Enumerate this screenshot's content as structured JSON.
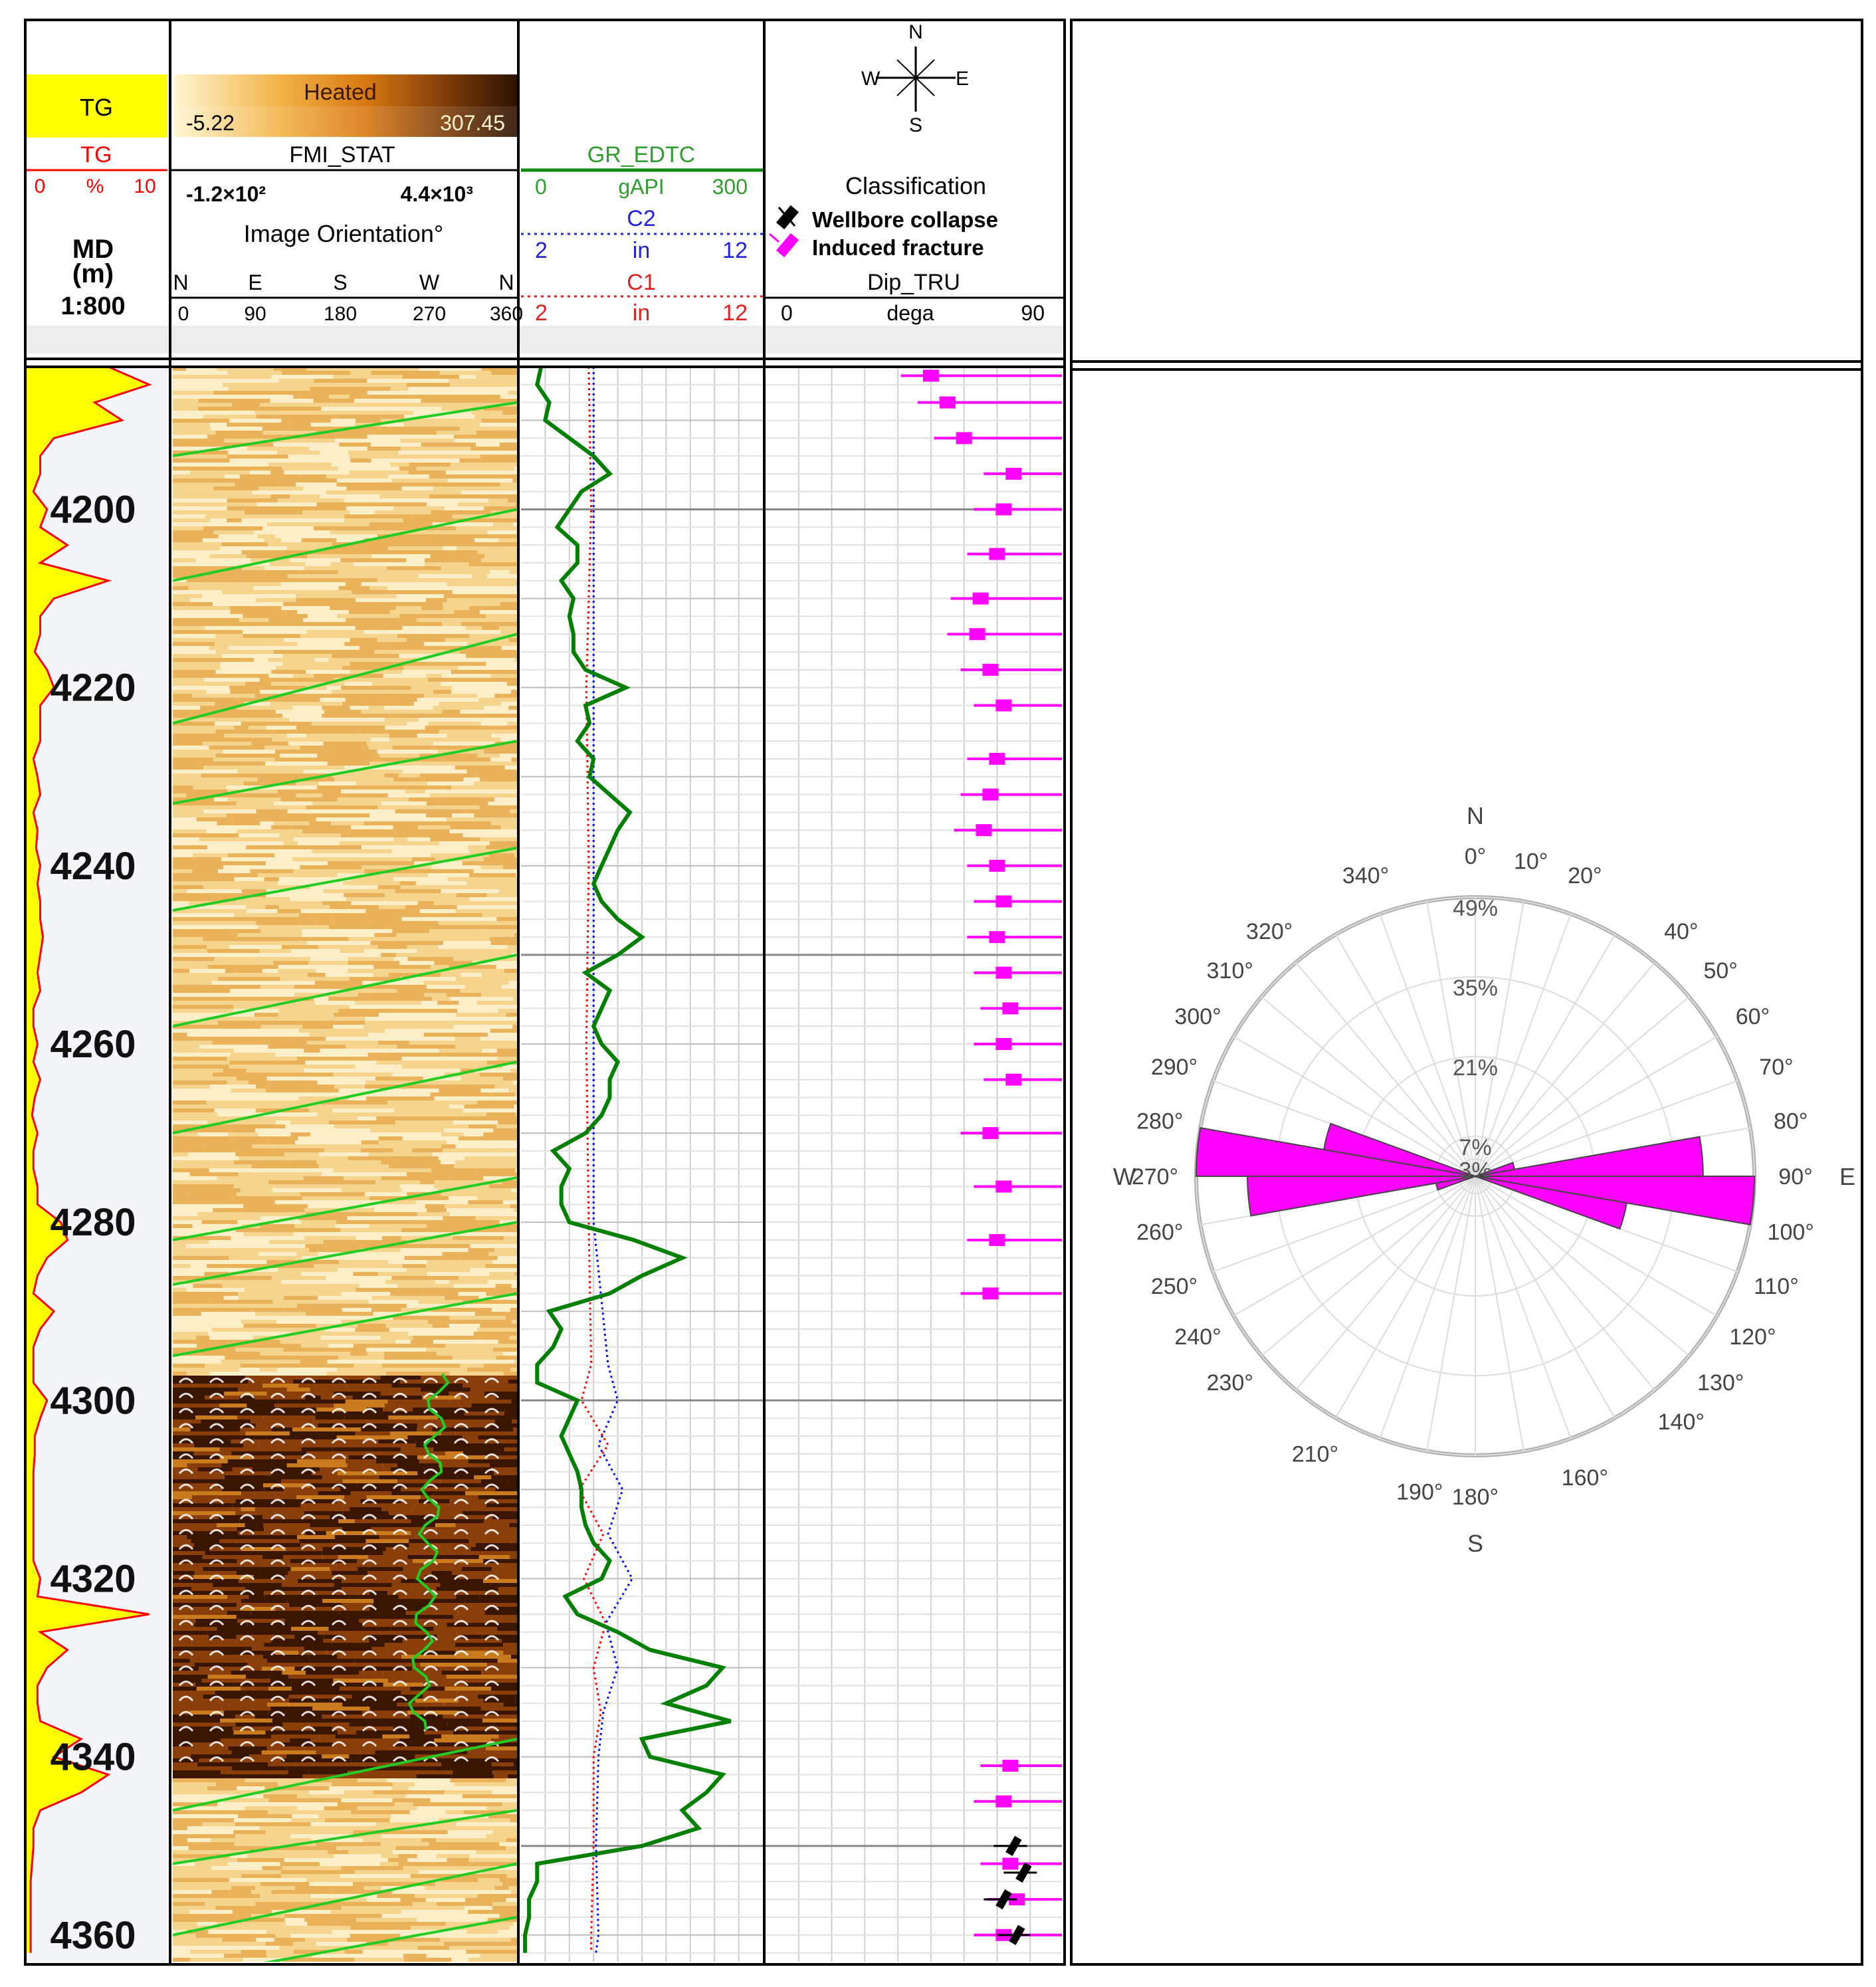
{
  "header": {
    "tg_label": "TG",
    "tg_curve_label": "TG",
    "tg_scale_min": "0",
    "tg_scale_unit": "%",
    "tg_scale_max": "10",
    "md_label": "MD",
    "md_unit": "(m)",
    "md_scale": "1:800",
    "heated_label": "Heated",
    "heated_min": "-5.22",
    "heated_max": "307.45",
    "fmi_label": "FMI_STAT",
    "fmi_min": "-1.2×10²",
    "fmi_max": "4.4×10³",
    "orientation_label": "Image Orientation°",
    "orientation_letters": [
      "N",
      "E",
      "S",
      "W",
      "N"
    ],
    "orientation_values": [
      "0",
      "90",
      "180",
      "270",
      "360"
    ],
    "gr_label": "GR_EDTC",
    "gr_min": "0",
    "gr_unit": "gAPI",
    "gr_max": "300",
    "c2_label": "C2",
    "c2_min": "2",
    "c2_unit": "in",
    "c2_max": "12",
    "c1_label": "C1",
    "c1_min": "2",
    "c1_unit": "in",
    "c1_max": "12",
    "compass": {
      "n": "N",
      "s": "S",
      "e": "E",
      "w": "W"
    },
    "classification_label": "Classification",
    "legend_collapse": "Wellbore collapse",
    "legend_fracture": "Induced fracture",
    "dip_label": "Dip_TRU",
    "dip_min": "0",
    "dip_unit": "dega",
    "dip_max": "90"
  },
  "depth_ticks": [
    "4200",
    "4220",
    "4240",
    "4260",
    "4280",
    "4300",
    "4320",
    "4340",
    "4360"
  ],
  "colors": {
    "tg_fill": "#ffff00",
    "tg_line": "#ff0000",
    "gr_line": "#008000",
    "c1_line": "#ff0000",
    "c2_line": "#0000ff",
    "fracture": "#ff00ff",
    "collapse": "#000000",
    "sinusoid": "#22cc22",
    "image_light": "#fbe7b2",
    "image_dark": "#5a2a05"
  },
  "rose": {
    "n": "N",
    "s": "S",
    "e": "E",
    "w": "W",
    "angle_labels": [
      {
        "text": "0°",
        "deg": 0
      },
      {
        "text": "10°",
        "deg": 10
      },
      {
        "text": "20°",
        "deg": 20
      },
      {
        "text": "40°",
        "deg": 40
      },
      {
        "text": "50°",
        "deg": 50
      },
      {
        "text": "60°",
        "deg": 60
      },
      {
        "text": "70°",
        "deg": 70
      },
      {
        "text": "80°",
        "deg": 80
      },
      {
        "text": "90°",
        "deg": 90
      },
      {
        "text": "100°",
        "deg": 100
      },
      {
        "text": "110°",
        "deg": 110
      },
      {
        "text": "120°",
        "deg": 120
      },
      {
        "text": "130°",
        "deg": 130
      },
      {
        "text": "140°",
        "deg": 140
      },
      {
        "text": "160°",
        "deg": 160
      },
      {
        "text": "180°",
        "deg": 180
      },
      {
        "text": "190°",
        "deg": 190
      },
      {
        "text": "210°",
        "deg": 210
      },
      {
        "text": "230°",
        "deg": 230
      },
      {
        "text": "240°",
        "deg": 240
      },
      {
        "text": "250°",
        "deg": 250
      },
      {
        "text": "260°",
        "deg": 260
      },
      {
        "text": "270°",
        "deg": 270
      },
      {
        "text": "280°",
        "deg": 280
      },
      {
        "text": "290°",
        "deg": 290
      },
      {
        "text": "300°",
        "deg": 300
      },
      {
        "text": "310°",
        "deg": 310
      },
      {
        "text": "320°",
        "deg": 320
      },
      {
        "text": "340°",
        "deg": 340
      }
    ],
    "radial_labels": [
      {
        "text": "49%",
        "value": 49
      },
      {
        "text": "35%",
        "value": 35
      },
      {
        "text": "21%",
        "value": 21
      },
      {
        "text": "7%",
        "value": 7
      },
      {
        "text": "3%",
        "value": 3
      }
    ]
  },
  "chart_data": {
    "type": "well_log",
    "depth_range_m": [
      4184,
      4363
    ],
    "depth_unit": "m",
    "tracks": {
      "tg": {
        "range": [
          0,
          10
        ],
        "unit": "%",
        "depth": [
          4184,
          4186,
          4188,
          4190,
          4192,
          4194,
          4196,
          4198,
          4200,
          4202,
          4204,
          4206,
          4208,
          4210,
          4212,
          4214,
          4216,
          4218,
          4220,
          4222,
          4224,
          4226,
          4228,
          4230,
          4232,
          4234,
          4236,
          4238,
          4240,
          4242,
          4244,
          4246,
          4248,
          4250,
          4252,
          4254,
          4256,
          4258,
          4260,
          4262,
          4264,
          4266,
          4268,
          4270,
          4272,
          4274,
          4276,
          4278,
          4280,
          4282,
          4284,
          4286,
          4288,
          4290,
          4292,
          4294,
          4296,
          4298,
          4300,
          4302,
          4304,
          4306,
          4308,
          4310,
          4312,
          4314,
          4316,
          4318,
          4320,
          4322,
          4324,
          4326,
          4328,
          4330,
          4332,
          4334,
          4336,
          4338,
          4340,
          4342,
          4344,
          4346,
          4348,
          4350,
          4352,
          4354,
          4356,
          4358,
          4360,
          4362
        ],
        "value": [
          6,
          9,
          5,
          7,
          2,
          1,
          1,
          0.5,
          1.5,
          1,
          3,
          1,
          6,
          2,
          1,
          1,
          0.6,
          1.5,
          2,
          1,
          1,
          1,
          0.5,
          0.8,
          1,
          0.5,
          0.8,
          0.7,
          1,
          0.8,
          1,
          1,
          1.2,
          1,
          0.8,
          1,
          0.5,
          0.5,
          0.8,
          0.5,
          1,
          0.6,
          0.4,
          0.8,
          0.5,
          0.5,
          0.8,
          0.8,
          2.5,
          3,
          1.5,
          0.8,
          0.5,
          2,
          1,
          0.5,
          0.5,
          0.5,
          1.5,
          1,
          0.6,
          0.6,
          0.5,
          0.5,
          0.5,
          0.5,
          0.5,
          0.5,
          1,
          0.8,
          9,
          1,
          3,
          1.5,
          0.8,
          0.8,
          1,
          4,
          2,
          6,
          4,
          1,
          0.5,
          0.5,
          0.4,
          0.3,
          0.3,
          0.3,
          0.3,
          0.3
        ]
      },
      "gr": {
        "range": [
          0,
          300
        ],
        "unit": "gAPI",
        "depth": [
          4184,
          4186,
          4188,
          4190,
          4192,
          4194,
          4196,
          4198,
          4200,
          4202,
          4204,
          4206,
          4208,
          4210,
          4212,
          4214,
          4216,
          4218,
          4220,
          4222,
          4224,
          4226,
          4228,
          4230,
          4232,
          4234,
          4236,
          4238,
          4240,
          4242,
          4244,
          4246,
          4248,
          4250,
          4252,
          4254,
          4256,
          4258,
          4260,
          4262,
          4264,
          4266,
          4268,
          4270,
          4272,
          4274,
          4276,
          4278,
          4280,
          4282,
          4284,
          4286,
          4288,
          4290,
          4292,
          4294,
          4296,
          4298,
          4300,
          4302,
          4304,
          4306,
          4308,
          4310,
          4312,
          4314,
          4316,
          4318,
          4320,
          4322,
          4324,
          4326,
          4328,
          4330,
          4332,
          4334,
          4336,
          4338,
          4340,
          4342,
          4344,
          4346,
          4348,
          4350,
          4352,
          4354,
          4356,
          4358,
          4360,
          4362
        ],
        "value": [
          25,
          20,
          35,
          30,
          60,
          90,
          110,
          75,
          60,
          45,
          70,
          70,
          50,
          65,
          60,
          65,
          65,
          80,
          130,
          80,
          85,
          70,
          90,
          85,
          110,
          135,
          120,
          110,
          100,
          90,
          100,
          120,
          150,
          120,
          80,
          110,
          100,
          90,
          100,
          120,
          110,
          110,
          100,
          80,
          40,
          60,
          50,
          50,
          60,
          140,
          200,
          150,
          110,
          35,
          50,
          40,
          20,
          20,
          70,
          60,
          50,
          60,
          70,
          75,
          75,
          80,
          90,
          110,
          100,
          55,
          70,
          120,
          160,
          250,
          230,
          180,
          260,
          150,
          160,
          250,
          230,
          200,
          220,
          150,
          20,
          20,
          10,
          10,
          5,
          5
        ]
      },
      "c1": {
        "range": [
          2,
          12
        ],
        "unit": "in",
        "depth": [
          4184,
          4200,
          4220,
          4240,
          4260,
          4280,
          4296,
          4300,
          4305,
          4310,
          4315,
          4320,
          4325,
          4330,
          4335,
          4340,
          4350,
          4360,
          4362
        ],
        "value": [
          4.8,
          4.9,
          4.7,
          4.8,
          4.7,
          4.8,
          4.9,
          4.5,
          5.6,
          4.4,
          5.4,
          4.6,
          5.5,
          5.0,
          5.3,
          5.0,
          5.0,
          4.9,
          4.9
        ]
      },
      "c2": {
        "range": [
          2,
          12
        ],
        "unit": "in",
        "depth": [
          4184,
          4200,
          4220,
          4240,
          4260,
          4280,
          4296,
          4300,
          4305,
          4310,
          4315,
          4320,
          4325,
          4330,
          4335,
          4340,
          4350,
          4360,
          4362
        ],
        "value": [
          5.0,
          5.0,
          5.0,
          5.0,
          5.0,
          5.0,
          5.6,
          6.0,
          5.2,
          6.2,
          5.6,
          6.6,
          5.5,
          6.0,
          5.4,
          5.2,
          5.1,
          5.2,
          5.1
        ]
      },
      "dip": {
        "range": [
          0,
          90
        ],
        "unit": "dega",
        "induced_fracture_depths": [
          4185,
          4188,
          4192,
          4196,
          4200,
          4205,
          4210,
          4214,
          4218,
          4222,
          4228,
          4232,
          4236,
          4240,
          4244,
          4248,
          4252,
          4256,
          4260,
          4264,
          4270,
          4276,
          4282,
          4288,
          4341,
          4345,
          4352,
          4356,
          4360
        ],
        "induced_fracture_dips": [
          50,
          55,
          60,
          75,
          72,
          70,
          65,
          64,
          68,
          72,
          70,
          68,
          66,
          70,
          72,
          70,
          72,
          74,
          72,
          75,
          68,
          72,
          70,
          68,
          74,
          72,
          74,
          76,
          72
        ],
        "collapse_depths": [
          4350,
          4353,
          4356,
          4360
        ],
        "collapse_dips": [
          75,
          78,
          72,
          76
        ]
      }
    },
    "rose": {
      "type": "rose",
      "max_percent": 49,
      "sectors": [
        {
          "from": 80,
          "to": 90,
          "percent": 40
        },
        {
          "from": 90,
          "to": 100,
          "percent": 49
        },
        {
          "from": 100,
          "to": 110,
          "percent": 27
        },
        {
          "from": 70,
          "to": 80,
          "percent": 7
        },
        {
          "from": 260,
          "to": 270,
          "percent": 40
        },
        {
          "from": 270,
          "to": 280,
          "percent": 49
        },
        {
          "from": 280,
          "to": 290,
          "percent": 27
        },
        {
          "from": 250,
          "to": 260,
          "percent": 7
        }
      ]
    }
  }
}
